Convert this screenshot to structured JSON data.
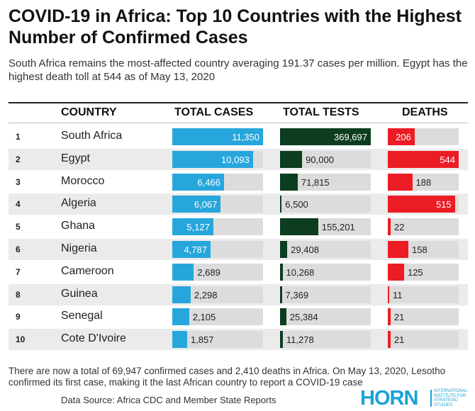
{
  "title": "COVID-19 in Africa: Top 10 Countries with the Highest Number of Confirmed Cases",
  "subtitle": "South Africa remains the most-affected country averaging 191.37 cases per million. Egypt has the highest death toll at 544 as of May 13, 2020",
  "footer": "There are now a total of 69,947 confirmed cases and 2,410 deaths in Africa. On May 13, 2020, Lesotho confirmed its first case, making it the last African country to report a COVID-19 case",
  "source": "Data Source: Africa CDC and Member State Reports",
  "logo": {
    "word": "HORN",
    "sub": "International Institute for Strategic Studies"
  },
  "colors": {
    "cases": "#27a6dc",
    "tests": "#0b3d1e",
    "deaths": "#ec1c24",
    "track": "#dcdcdc"
  },
  "chart_data": {
    "type": "table",
    "columns": [
      "COUNTRY",
      "TOTAL CASES",
      "TOTAL TESTS",
      "DEATHS"
    ],
    "max": {
      "cases": 11350,
      "tests": 369697,
      "deaths": 544
    },
    "rows": [
      {
        "rank": "1",
        "country": "South Africa",
        "cases": 11350,
        "cases_label": "11,350",
        "tests": 369697,
        "tests_label": "369,697",
        "deaths": 206,
        "deaths_label": "206"
      },
      {
        "rank": "2",
        "country": "Egypt",
        "cases": 10093,
        "cases_label": "10,093",
        "tests": 90000,
        "tests_label": "90,000",
        "deaths": 544,
        "deaths_label": "544"
      },
      {
        "rank": "3",
        "country": "Morocco",
        "cases": 6466,
        "cases_label": "6,466",
        "tests": 71815,
        "tests_label": "71,815",
        "deaths": 188,
        "deaths_label": "188"
      },
      {
        "rank": "4",
        "country": "Algeria",
        "cases": 6067,
        "cases_label": "6,067",
        "tests": 6500,
        "tests_label": "6,500",
        "deaths": 515,
        "deaths_label": "515"
      },
      {
        "rank": "5",
        "country": "Ghana",
        "cases": 5127,
        "cases_label": "5,127",
        "tests": 155201,
        "tests_label": "155,201",
        "deaths": 22,
        "deaths_label": "22"
      },
      {
        "rank": "6",
        "country": "Nigeria",
        "cases": 4787,
        "cases_label": "4,787",
        "tests": 29408,
        "tests_label": "29,408",
        "deaths": 158,
        "deaths_label": "158"
      },
      {
        "rank": "7",
        "country": "Cameroon",
        "cases": 2689,
        "cases_label": "2,689",
        "tests": 10268,
        "tests_label": "10,268",
        "deaths": 125,
        "deaths_label": "125"
      },
      {
        "rank": "8",
        "country": "Guinea",
        "cases": 2298,
        "cases_label": "2,298",
        "tests": 7369,
        "tests_label": "7,369",
        "deaths": 11,
        "deaths_label": "11"
      },
      {
        "rank": "9",
        "country": "Senegal",
        "cases": 2105,
        "cases_label": "2,105",
        "tests": 25384,
        "tests_label": "25,384",
        "deaths": 21,
        "deaths_label": "21"
      },
      {
        "rank": "10",
        "country": "Cote D'Ivoire",
        "cases": 1857,
        "cases_label": "1,857",
        "tests": 11278,
        "tests_label": "11,278",
        "deaths": 21,
        "deaths_label": "21"
      }
    ]
  }
}
